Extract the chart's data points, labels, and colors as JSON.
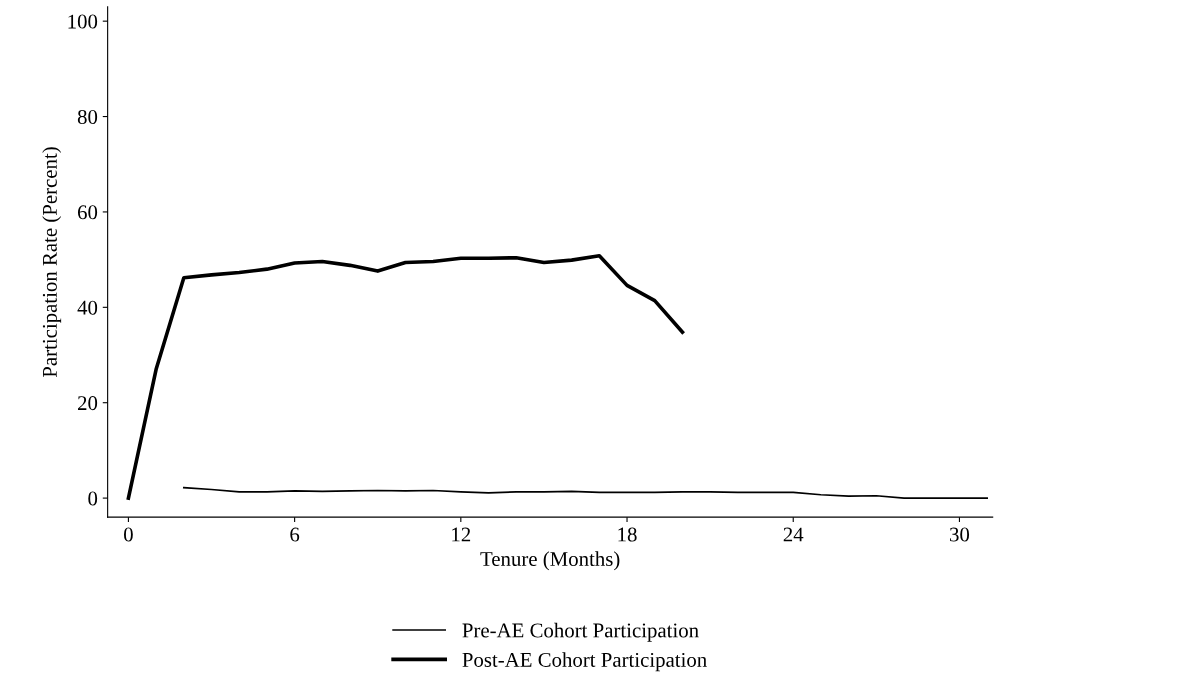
{
  "chart_data": {
    "type": "line",
    "xlabel": "Tenure (Months)",
    "ylabel": "Participation Rate (Percent)",
    "xlim": [
      -0.75,
      31.2
    ],
    "ylim": [
      -4,
      103
    ],
    "xticks": [
      0,
      6,
      12,
      18,
      24,
      30
    ],
    "yticks": [
      0,
      20,
      40,
      60,
      80,
      100
    ],
    "grid": false,
    "legend": "bottom",
    "marker": "none",
    "line_style": "solid",
    "series": [
      {
        "name": "Pre-AE Cohort Participation",
        "color": "#000000",
        "x": [
          2,
          3,
          4,
          5,
          6,
          7,
          8,
          9,
          10,
          11,
          12,
          13,
          14,
          15,
          16,
          17,
          18,
          19,
          20,
          21,
          22,
          23,
          24,
          25,
          26,
          27,
          28,
          29,
          30,
          31
        ],
        "values": [
          2.2,
          1.8,
          1.3,
          1.3,
          1.5,
          1.4,
          1.5,
          1.6,
          1.5,
          1.6,
          1.3,
          1.1,
          1.3,
          1.3,
          1.4,
          1.2,
          1.2,
          1.2,
          1.3,
          1.3,
          1.2,
          1.2,
          1.2,
          0.7,
          0.4,
          0.5,
          0,
          0,
          0,
          0
        ]
      },
      {
        "name": "Post-AE Cohort Participation",
        "color": "#000000",
        "x": [
          0,
          1,
          2,
          3,
          4,
          5,
          6,
          7,
          8,
          9,
          10,
          11,
          12,
          13,
          14,
          15,
          16,
          17,
          18,
          19,
          20
        ],
        "values": [
          0,
          27,
          46.2,
          46.8,
          47.3,
          48.0,
          49.3,
          49.6,
          48.8,
          47.6,
          49.4,
          49.6,
          50.3,
          50.3,
          50.4,
          49.4,
          49.9,
          50.8,
          44.6,
          41.4,
          34.8
        ]
      }
    ]
  }
}
